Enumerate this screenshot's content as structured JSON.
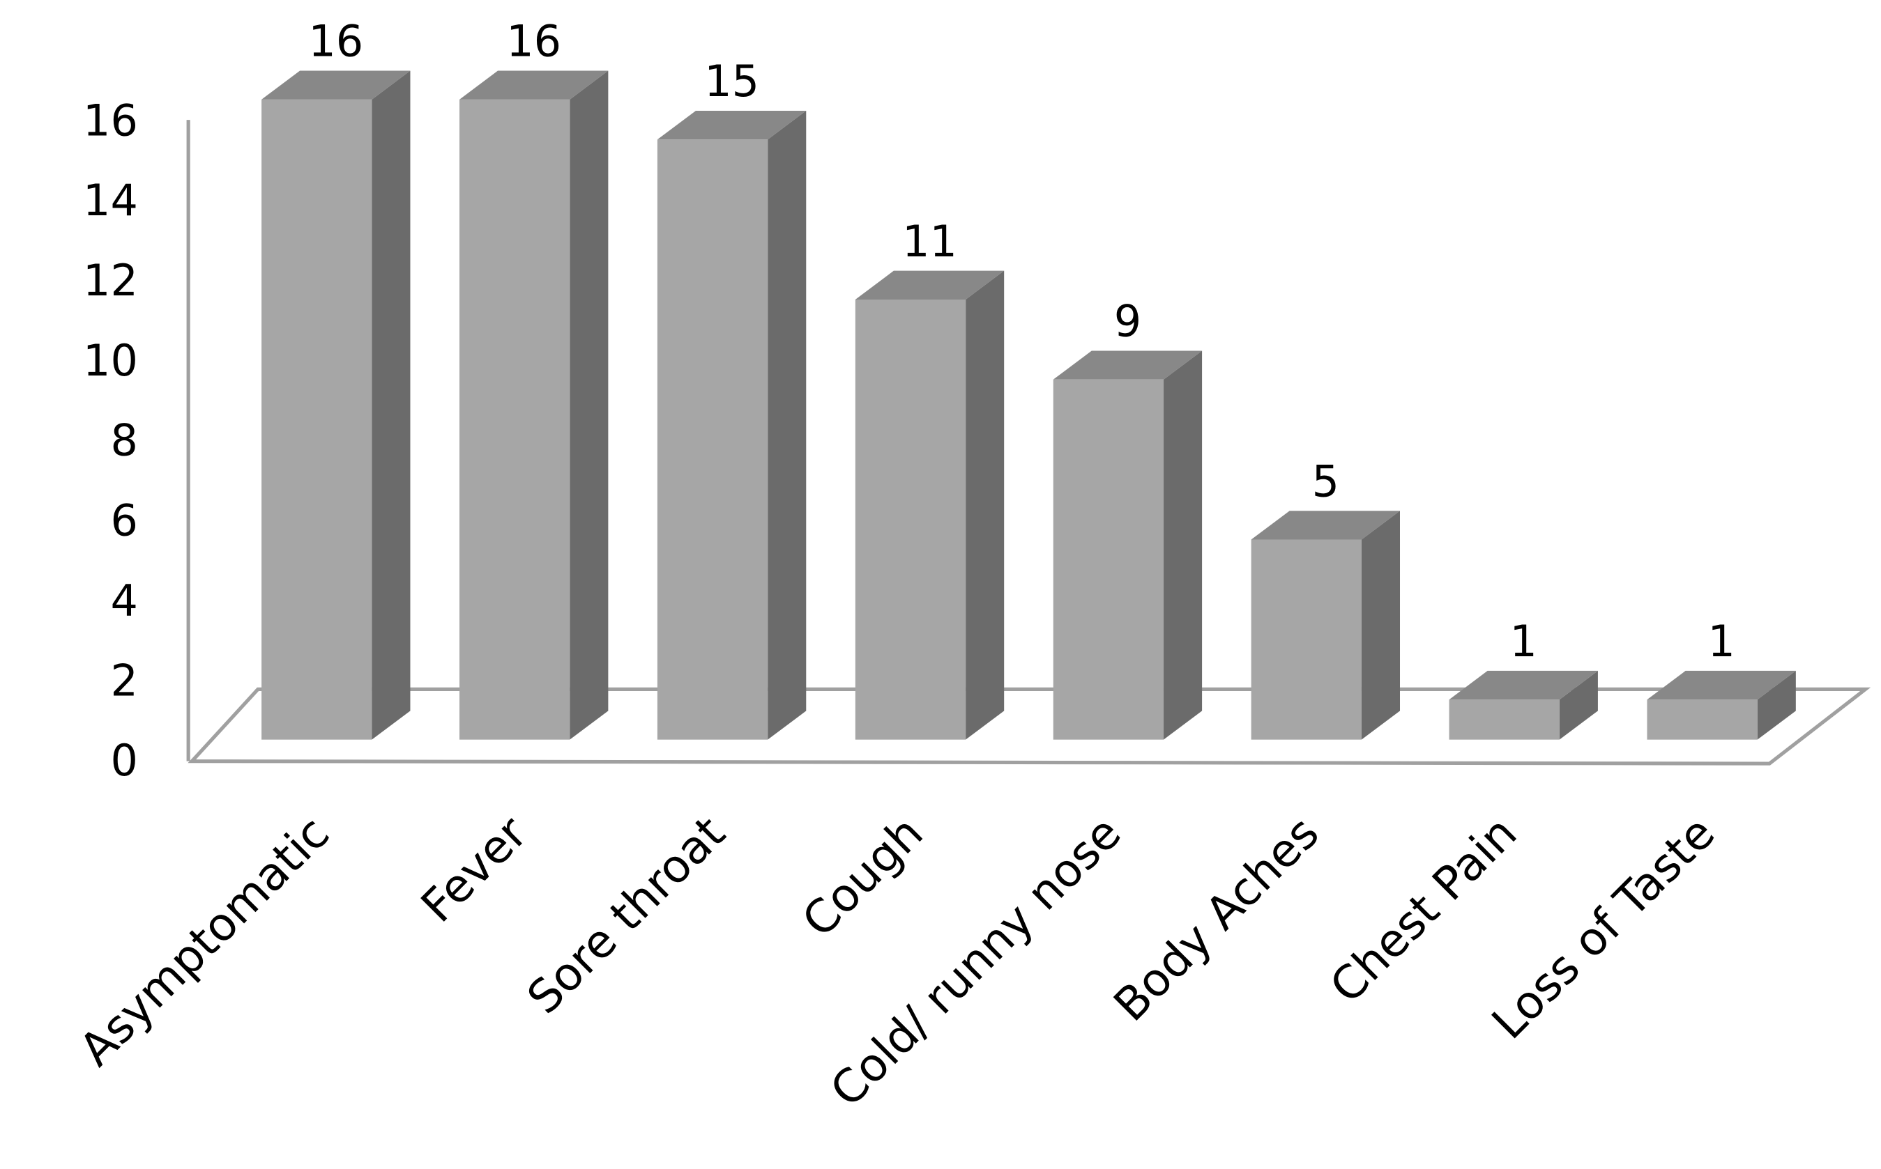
{
  "chart_data": {
    "type": "bar3d",
    "categories": [
      "Asymptomatic",
      "Fever",
      "Sore throat",
      "Cough",
      "Cold/ runny nose",
      "Body Aches",
      "Chest Pain",
      "Loss of Taste"
    ],
    "values": [
      16,
      16,
      15,
      11,
      9,
      5,
      1,
      1
    ],
    "color": "#a6a6a6",
    "ylim": [
      0,
      16
    ],
    "yticks": [
      0,
      2,
      4,
      6,
      8,
      10,
      12,
      14,
      16
    ]
  }
}
